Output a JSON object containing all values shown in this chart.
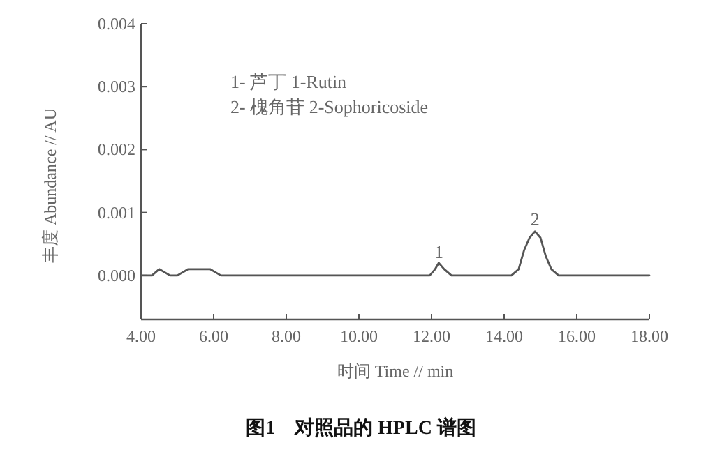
{
  "chart_data": {
    "type": "line",
    "title": "图1　对照品的 HPLC 谱图",
    "xlabel": "时间  Time // min",
    "ylabel": "丰度  Abundance // AU",
    "x": [
      4.0,
      4.3,
      4.5,
      4.8,
      5.0,
      5.3,
      5.6,
      5.9,
      6.2,
      6.5,
      8.0,
      10.0,
      11.8,
      11.95,
      12.1,
      12.2,
      12.35,
      12.55,
      12.75,
      14.2,
      14.4,
      14.55,
      14.7,
      14.85,
      15.0,
      15.15,
      15.3,
      15.5,
      16.0,
      18.0
    ],
    "series": [
      {
        "color": "#555555",
        "values": [
          0,
          0,
          0.0001,
          0,
          0,
          0.0001,
          0.0001,
          0.0001,
          0,
          0,
          0,
          0,
          0,
          0,
          0.0001,
          0.0002,
          0.0001,
          0,
          0,
          0,
          0.0001,
          0.0004,
          0.0006,
          0.0007,
          0.0006,
          0.0003,
          0.0001,
          0,
          0,
          0
        ]
      }
    ],
    "xlim": [
      4,
      18
    ],
    "ylim": [
      -0.0007,
      0.004
    ],
    "xticks": [
      {
        "value": 4,
        "label": "4.00"
      },
      {
        "value": 6,
        "label": "6.00"
      },
      {
        "value": 8,
        "label": "8.00"
      },
      {
        "value": 10,
        "label": "10.00"
      },
      {
        "value": 12,
        "label": "12.00"
      },
      {
        "value": 14,
        "label": "14.00"
      },
      {
        "value": 16,
        "label": "16.00"
      },
      {
        "value": 18,
        "label": "18.00"
      }
    ],
    "yticks": [
      {
        "value": 0,
        "label": "0.000"
      },
      {
        "value": 0.001,
        "label": "0.001"
      },
      {
        "value": 0.002,
        "label": "0.002"
      },
      {
        "value": 0.003,
        "label": "0.003"
      },
      {
        "value": 0.004,
        "label": "0.004"
      }
    ],
    "annotations": [
      "1- 芦丁  1-Rutin",
      "2- 槐角苷  2-Sophoricoside",
      {
        "text": "1",
        "x": 12.2,
        "y": 0.00016
      },
      {
        "text": "2",
        "x": 14.85,
        "y": 0.00069
      }
    ],
    "grid": false,
    "marker": "none",
    "line_style": "solid"
  }
}
